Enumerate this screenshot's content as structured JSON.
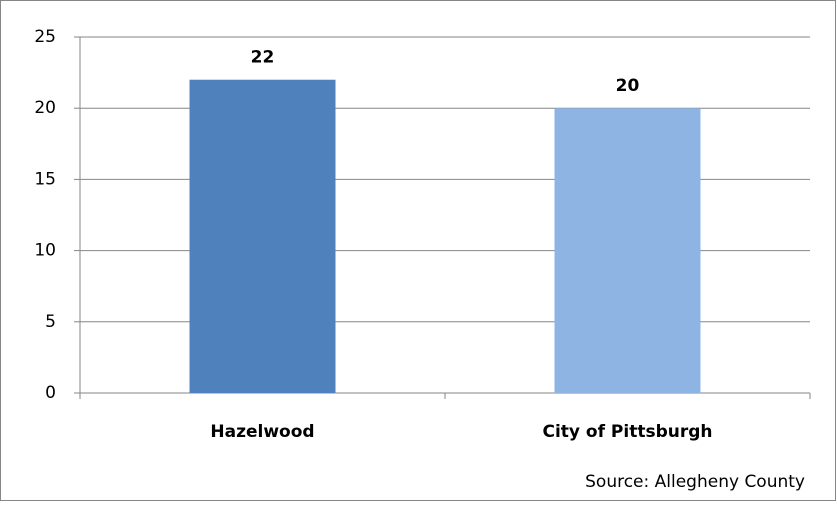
{
  "chart_data": {
    "type": "bar",
    "categories": [
      "Hazelwood",
      "City of Pittsburgh"
    ],
    "values": [
      22,
      20
    ],
    "colors": [
      "#4f81bd",
      "#8eb4e3"
    ],
    "ylim": [
      0,
      25
    ],
    "yticks": [
      0,
      5,
      10,
      15,
      20,
      25
    ],
    "grid": true,
    "source": "Source: Allegheny County"
  }
}
